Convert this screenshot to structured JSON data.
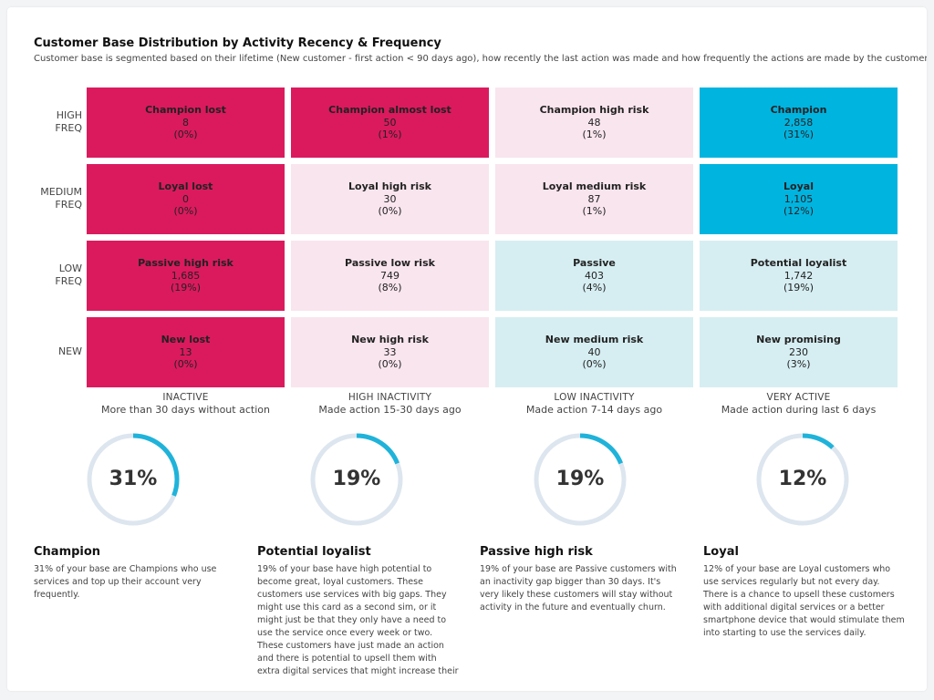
{
  "header": {
    "title": "Customer Base Distribution by Activity Recency & Frequency",
    "subtitle": "Customer base is segmented based on their lifetime (New customer - first action < 90 days ago), how recently the last action was made and how frequently the actions are made by the customer."
  },
  "colors": {
    "inactive": "#db1a5e",
    "risk": "#f9e5ee",
    "active_light": "#d6eef2",
    "active_strong": "#00b4e0",
    "donut_track": "#dde6ef",
    "donut_arc": "#1fb3da"
  },
  "chart_data": {
    "type": "heatmap",
    "rows": [
      {
        "line1": "HIGH",
        "line2": "FREQ"
      },
      {
        "line1": "MEDIUM",
        "line2": "FREQ"
      },
      {
        "line1": "LOW",
        "line2": "FREQ"
      },
      {
        "line1": "NEW",
        "line2": ""
      }
    ],
    "columns": [
      {
        "line1": "INACTIVE",
        "line2": "More than 30 days without action"
      },
      {
        "line1": "HIGH INACTIVITY",
        "line2": "Made action 15-30 days ago"
      },
      {
        "line1": "LOW INACTIVITY",
        "line2": "Made action 7-14 days ago"
      },
      {
        "line1": "VERY ACTIVE",
        "line2": "Made action during last 6 days"
      }
    ],
    "cells": [
      [
        {
          "name": "Champion lost",
          "count": "8",
          "share": "(0%)",
          "tone": "inactive"
        },
        {
          "name": "Champion almost lost",
          "count": "50",
          "share": "(1%)",
          "tone": "inactive"
        },
        {
          "name": "Champion high risk",
          "count": "48",
          "share": "(1%)",
          "tone": "risk"
        },
        {
          "name": "Champion",
          "count": "2,858",
          "share": "(31%)",
          "tone": "active_strong"
        }
      ],
      [
        {
          "name": "Loyal lost",
          "count": "0",
          "share": "(0%)",
          "tone": "inactive"
        },
        {
          "name": "Loyal high risk",
          "count": "30",
          "share": "(0%)",
          "tone": "risk"
        },
        {
          "name": "Loyal medium risk",
          "count": "87",
          "share": "(1%)",
          "tone": "risk"
        },
        {
          "name": "Loyal",
          "count": "1,105",
          "share": "(12%)",
          "tone": "active_strong"
        }
      ],
      [
        {
          "name": "Passive high risk",
          "count": "1,685",
          "share": "(19%)",
          "tone": "inactive"
        },
        {
          "name": "Passive low risk",
          "count": "749",
          "share": "(8%)",
          "tone": "risk"
        },
        {
          "name": "Passive",
          "count": "403",
          "share": "(4%)",
          "tone": "active_light"
        },
        {
          "name": "Potential loyalist",
          "count": "1,742",
          "share": "(19%)",
          "tone": "active_light"
        }
      ],
      [
        {
          "name": "New lost",
          "count": "13",
          "share": "(0%)",
          "tone": "inactive"
        },
        {
          "name": "New high risk",
          "count": "33",
          "share": "(0%)",
          "tone": "risk"
        },
        {
          "name": "New medium risk",
          "count": "40",
          "share": "(0%)",
          "tone": "active_light"
        },
        {
          "name": "New promising",
          "count": "230",
          "share": "(3%)",
          "tone": "active_light"
        }
      ]
    ]
  },
  "highlights": [
    {
      "percent": 31,
      "label": "31%",
      "title": "Champion",
      "text": "31% of your base are Champions who use services and top up their account very frequently."
    },
    {
      "percent": 19,
      "label": "19%",
      "title": "Potential loyalist",
      "text": "19% of your base have high potential to become great, loyal customers. These customers use services with big gaps. They might use this card as a second sim, or it might just be that they only have a need to use the service once every week or two. These customers have just made an action and there is potential to upsell them with extra digital services that might increase their"
    },
    {
      "percent": 19,
      "label": "19%",
      "title": "Passive high risk",
      "text": "19% of your base are Passive customers with an inactivity gap bigger than 30 days. It's very likely these customers will stay without activity in the future and eventually churn."
    },
    {
      "percent": 12,
      "label": "12%",
      "title": "Loyal",
      "text": "12% of your base are Loyal customers who use services regularly but not every day. There is a chance to upsell these customers with additional digital services or a better smartphone device that would stimulate them into starting to use the services daily."
    }
  ]
}
